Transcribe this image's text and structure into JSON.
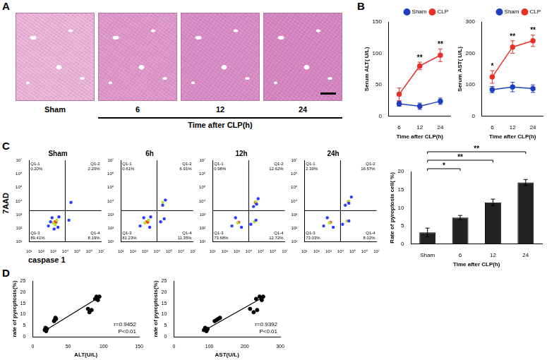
{
  "panel_labels": [
    "A",
    "B",
    "C",
    "D"
  ],
  "histology": {
    "labels": [
      "Sham",
      "6",
      "12",
      "24"
    ],
    "axis_label": "Time after CLP(h)"
  },
  "flow": {
    "x_label": "caspase 1",
    "y_label": "7AAD"
  },
  "chart_data": [
    {
      "type": "line",
      "ylabel": "Serum ALT( U/L)",
      "xlabel": "Time after CLP(h)",
      "categories": [
        "6",
        "12",
        "24"
      ],
      "ylim": [
        0,
        150
      ],
      "yticks": [
        0,
        50,
        100,
        150
      ],
      "grid": false,
      "legend": "top right",
      "series": [
        {
          "name": "Sham",
          "color": "#1f3fbf",
          "marker": "circle",
          "values": [
            20,
            16,
            24
          ],
          "errors": [
            4,
            5,
            5
          ]
        },
        {
          "name": "CLP",
          "color": "#e8302a",
          "marker": "circle",
          "values": [
            35,
            80,
            97
          ],
          "errors": [
            10,
            6,
            10
          ],
          "significance": [
            null,
            "**",
            "**"
          ]
        }
      ]
    },
    {
      "type": "line",
      "ylabel": "Serum AST( U/L)",
      "xlabel": "Time after CLP(h)",
      "categories": [
        "6",
        "12",
        "24"
      ],
      "ylim": [
        0,
        300
      ],
      "yticks": [
        0,
        100,
        200,
        300
      ],
      "grid": false,
      "legend": "top right",
      "series": [
        {
          "name": "Sham",
          "color": "#1f3fbf",
          "marker": "circle",
          "values": [
            85,
            93,
            88
          ],
          "errors": [
            10,
            15,
            12
          ]
        },
        {
          "name": "CLP",
          "color": "#e8302a",
          "marker": "circle",
          "values": [
            125,
            220,
            240
          ],
          "errors": [
            20,
            20,
            18
          ],
          "significance": [
            "*",
            "**",
            "**"
          ]
        }
      ]
    },
    {
      "type": "scatter",
      "title": "Sham",
      "log": true,
      "grid": false,
      "xlim": [
        10,
        10000000
      ],
      "ylim": [
        10,
        10000000
      ],
      "xticks": [
        {
          "value": 10,
          "label": "10¹"
        },
        {
          "value": 100,
          "label": "10²"
        },
        {
          "value": 1000,
          "label": "10³"
        },
        {
          "value": 10000,
          "label": "10⁴"
        },
        {
          "value": 100000,
          "label": "10⁵"
        },
        {
          "value": 1000000,
          "label": "10⁶"
        },
        {
          "value": 10000000,
          "label": "10⁷"
        }
      ],
      "yticks": [
        {
          "value": 10,
          "label": "10¹"
        },
        {
          "value": 100,
          "label": "10²"
        },
        {
          "value": 1000,
          "label": "10³"
        },
        {
          "value": 10000,
          "label": "10⁴"
        },
        {
          "value": 100000,
          "label": "10⁵"
        },
        {
          "value": 1000000,
          "label": "10⁶"
        },
        {
          "value": 10000000,
          "label": "10⁷"
        }
      ],
      "gates": {
        "x": 10000,
        "y": 2000
      },
      "quadrants": [
        {
          "name": "Q1-1",
          "value": 0.2,
          "label": "0.20%"
        },
        {
          "name": "Q1-2",
          "value": 2.2,
          "label": "2.20%"
        },
        {
          "name": "Q1-3",
          "value": 89.41,
          "label": "89.41%"
        },
        {
          "name": "Q1-4",
          "value": 8.19,
          "label": "8.19%"
        }
      ],
      "series": [
        {
          "color": "#2a3cff",
          "x": [
            400,
            800,
            2500,
            3000,
            1200,
            600,
            20000,
            30000
          ],
          "values": [
            150,
            600,
            120,
            700,
            90,
            300,
            400,
            8000
          ]
        },
        {
          "color": "#b5e03a",
          "x": [
            1000,
            2000,
            1500
          ],
          "values": [
            250,
            400,
            180
          ]
        },
        {
          "color": "#ff3a1a",
          "x": [
            1400,
            1700
          ],
          "values": [
            300,
            280
          ]
        }
      ]
    },
    {
      "type": "scatter",
      "title": "6h",
      "log": true,
      "grid": false,
      "xlim": [
        10,
        10000000
      ],
      "ylim": [
        10,
        10000000
      ],
      "xticks": [
        {
          "value": 10,
          "label": "10¹"
        },
        {
          "value": 100,
          "label": "10²"
        },
        {
          "value": 1000,
          "label": "10³"
        },
        {
          "value": 10000,
          "label": "10⁴"
        },
        {
          "value": 100000,
          "label": "10⁵"
        },
        {
          "value": 1000000,
          "label": "10⁶"
        },
        {
          "value": 10000000,
          "label": "10⁷"
        }
      ],
      "yticks": [
        {
          "value": 10,
          "label": "10¹"
        },
        {
          "value": 100,
          "label": "10²"
        },
        {
          "value": 1000,
          "label": "10³"
        },
        {
          "value": 10000,
          "label": "10⁴"
        },
        {
          "value": 100000,
          "label": "10⁵"
        },
        {
          "value": 1000000,
          "label": "10⁶"
        },
        {
          "value": 10000000,
          "label": "10⁷"
        }
      ],
      "gates": {
        "x": 10000,
        "y": 2000
      },
      "quadrants": [
        {
          "name": "Q1-1",
          "value": 0.61,
          "label": "0.61%"
        },
        {
          "name": "Q1-2",
          "value": 6.91,
          "label": "6.91%"
        },
        {
          "name": "Q1-3",
          "value": 81.23,
          "label": "81.23%"
        },
        {
          "name": "Q1-4",
          "value": 11.35,
          "label": "11.35%"
        }
      ],
      "series": [
        {
          "color": "#2a3cff",
          "x": [
            400,
            800,
            2500,
            3000,
            20000,
            40000,
            30000,
            50000
          ],
          "values": [
            150,
            600,
            120,
            700,
            300,
            500,
            5000,
            12000
          ]
        },
        {
          "color": "#b5e03a",
          "x": [
            1000,
            2000,
            30000
          ],
          "values": [
            250,
            400,
            8000
          ]
        },
        {
          "color": "#ff3a1a",
          "x": [
            1400,
            1700
          ],
          "values": [
            300,
            280
          ]
        }
      ]
    },
    {
      "type": "scatter",
      "title": "12h",
      "log": true,
      "grid": false,
      "xlim": [
        10,
        10000000
      ],
      "ylim": [
        10,
        10000000
      ],
      "xticks": [
        {
          "value": 10,
          "label": "10¹"
        },
        {
          "value": 100,
          "label": "10²"
        },
        {
          "value": 1000,
          "label": "10³"
        },
        {
          "value": 10000,
          "label": "10⁴"
        },
        {
          "value": 100000,
          "label": "10⁵"
        },
        {
          "value": 1000000,
          "label": "10⁶"
        },
        {
          "value": 10000000,
          "label": "10⁷"
        }
      ],
      "yticks": [
        {
          "value": 10,
          "label": "10¹"
        },
        {
          "value": 100,
          "label": "10²"
        },
        {
          "value": 1000,
          "label": "10³"
        },
        {
          "value": 10000,
          "label": "10⁴"
        },
        {
          "value": 100000,
          "label": "10⁵"
        },
        {
          "value": 1000000,
          "label": "10⁶"
        },
        {
          "value": 10000000,
          "label": "10⁷"
        }
      ],
      "gates": {
        "x": 10000,
        "y": 2000
      },
      "quadrants": [
        {
          "name": "Q1-1",
          "value": 0.98,
          "label": "0.98%"
        },
        {
          "name": "Q1-2",
          "value": 12.62,
          "label": "12.62%"
        },
        {
          "name": "Q1-3",
          "value": 73.68,
          "label": "73.68%"
        },
        {
          "name": "Q1-4",
          "value": 12.72,
          "label": "12.72%"
        }
      ],
      "series": [
        {
          "color": "#2a3cff",
          "x": [
            400,
            800,
            2500,
            15000,
            40000,
            25000,
            60000,
            45000
          ],
          "values": [
            150,
            600,
            120,
            200,
            400,
            4000,
            15000,
            6000
          ]
        },
        {
          "color": "#b5e03a",
          "x": [
            1200,
            30000,
            40000
          ],
          "values": [
            250,
            300,
            9000
          ]
        },
        {
          "color": "#ff3a1a",
          "x": [
            1500,
            35000
          ],
          "values": [
            280,
            8000
          ]
        }
      ]
    },
    {
      "type": "scatter",
      "title": "24h",
      "log": true,
      "grid": false,
      "xlim": [
        10,
        10000000
      ],
      "ylim": [
        10,
        10000000
      ],
      "xticks": [
        {
          "value": 10,
          "label": "10¹"
        },
        {
          "value": 100,
          "label": "10²"
        },
        {
          "value": 1000,
          "label": "10³"
        },
        {
          "value": 10000,
          "label": "10⁴"
        },
        {
          "value": 100000,
          "label": "10⁵"
        },
        {
          "value": 1000000,
          "label": "10⁶"
        },
        {
          "value": 10000000,
          "label": "10⁷"
        }
      ],
      "yticks": [
        {
          "value": 10,
          "label": "10¹"
        },
        {
          "value": 100,
          "label": "10²"
        },
        {
          "value": 1000,
          "label": "10³"
        },
        {
          "value": 10000,
          "label": "10⁴"
        },
        {
          "value": 100000,
          "label": "10⁵"
        },
        {
          "value": 1000000,
          "label": "10⁶"
        },
        {
          "value": 10000000,
          "label": "10⁷"
        }
      ],
      "gates": {
        "x": 10000,
        "y": 2000
      },
      "quadrants": [
        {
          "name": "Q1-1",
          "value": 2.39,
          "label": "2.39%"
        },
        {
          "name": "Q1-2",
          "value": 16.57,
          "label": "16.57%"
        },
        {
          "name": "Q1-3",
          "value": 73.03,
          "label": "73.03%"
        },
        {
          "name": "Q1-4",
          "value": 8.02,
          "label": "8.02%"
        }
      ],
      "series": [
        {
          "color": "#2a3cff",
          "x": [
            400,
            800,
            2500,
            15000,
            50000,
            25000,
            80000,
            50000
          ],
          "values": [
            150,
            600,
            120,
            200,
            350,
            5000,
            20000,
            7000
          ]
        },
        {
          "color": "#b5e03a",
          "x": [
            1200,
            35000,
            50000
          ],
          "values": [
            250,
            350,
            10000
          ]
        },
        {
          "color": "#ff3a1a",
          "x": [
            1500,
            45000
          ],
          "values": [
            280,
            9000
          ]
        }
      ]
    },
    {
      "type": "bar",
      "ylabel": "Rate of pyroptosis cell( %)",
      "xlabel": "Time after CLP(h)",
      "categories": [
        "Sham",
        "6",
        "12",
        "24"
      ],
      "values": [
        3.2,
        7.3,
        11.5,
        17.0
      ],
      "errors": [
        1.2,
        0.6,
        0.9,
        0.8
      ],
      "color": "#222222",
      "ylim": [
        0,
        20
      ],
      "yticks": [
        0,
        5,
        10,
        15,
        20
      ],
      "grid": false,
      "comparisons": [
        {
          "from": "Sham",
          "to": "6",
          "label": "*"
        },
        {
          "from": "Sham",
          "to": "12",
          "label": "**"
        },
        {
          "from": "Sham",
          "to": "24",
          "label": "**"
        }
      ]
    },
    {
      "type": "scatter",
      "xlabel": "ALT(U/L)",
      "ylabel": "rate of pyroptosis(%)",
      "xlim": [
        0,
        150
      ],
      "xticks": [
        0,
        50,
        100,
        150
      ],
      "ylim": [
        0,
        25
      ],
      "yticks": [
        0,
        5,
        10,
        15,
        20,
        25
      ],
      "grid": false,
      "color": "#000000",
      "marker": "circle",
      "x": [
        17,
        18,
        19,
        20,
        30,
        31,
        33,
        32,
        78,
        80,
        83,
        88,
        90,
        92,
        94
      ],
      "values": [
        3,
        4,
        2.5,
        3.5,
        7,
        7.5,
        8,
        8.5,
        12.5,
        11,
        12,
        17,
        18,
        16.5,
        18
      ],
      "fit": {
        "x": [
          15,
          95
        ],
        "values": [
          2.3,
          18
        ]
      },
      "annotations": [
        "r=0.9452",
        "P<0.01"
      ]
    },
    {
      "type": "scatter",
      "xlabel": "AST(U/L)",
      "ylabel": "rate of pyroptosis(%)",
      "xlim": [
        0,
        300
      ],
      "xticks": [
        0,
        100,
        200,
        300
      ],
      "ylim": [
        0,
        25
      ],
      "yticks": [
        0,
        5,
        10,
        15,
        20,
        25
      ],
      "grid": false,
      "color": "#000000",
      "marker": "circle",
      "x": [
        85,
        88,
        92,
        95,
        115,
        120,
        125,
        130,
        215,
        225,
        235,
        232,
        242,
        248,
        252
      ],
      "values": [
        3,
        4,
        2.5,
        3.5,
        7,
        7.5,
        8,
        8.5,
        12.5,
        11,
        12,
        17,
        18,
        16.5,
        18
      ],
      "fit": {
        "x": [
          80,
          255
        ],
        "values": [
          2.3,
          18
        ]
      },
      "annotations": [
        "r=0.9392",
        "P<0.01"
      ]
    }
  ]
}
